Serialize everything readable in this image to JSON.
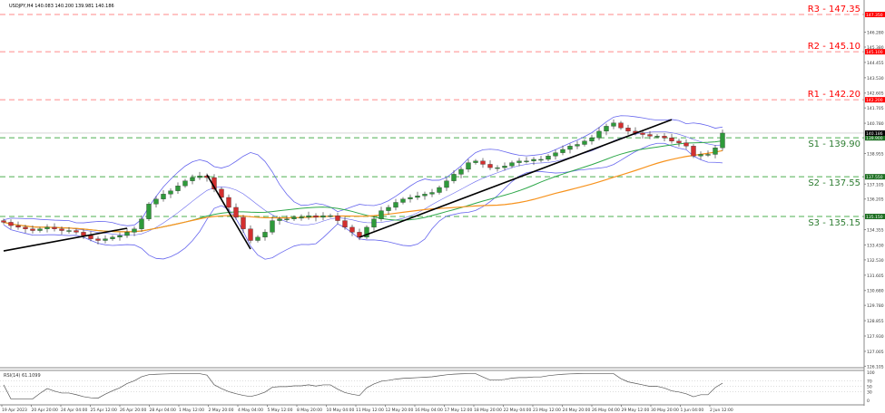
{
  "header": {
    "title": "USDJPY,H4  140.083 140.200 139.981 140.186"
  },
  "chart_data": {
    "type": "candlestick",
    "symbol": "USDJPY",
    "timeframe": "H4",
    "ohlc_last": {
      "open": 140.083,
      "high": 140.2,
      "low": 139.981,
      "close": 140.186
    },
    "ylim": [
      126.105,
      147.6
    ],
    "y_ticks": [
      "146.280",
      "145.380",
      "144.455",
      "143.530",
      "142.605",
      "141.705",
      "140.780",
      "138.955",
      "137.105",
      "136.205",
      "134.355",
      "133.430",
      "132.530",
      "131.605",
      "130.680",
      "129.780",
      "128.855",
      "127.930",
      "127.005",
      "126.105"
    ],
    "x_ticks": [
      "19 Apr 2023",
      "20 Apr 20:00",
      "24 Apr 04:00",
      "25 Apr 12:00",
      "26 Apr 20:00",
      "28 Apr 04:00",
      "1 May 12:00",
      "2 May 20:00",
      "4 May 04:00",
      "5 May 12:00",
      "8 May 20:00",
      "10 May 04:00",
      "11 May 12:00",
      "12 May 20:00",
      "16 May 04:00",
      "17 May 12:00",
      "18 May 20:00",
      "22 May 04:00",
      "23 May 12:00",
      "24 May 20:00",
      "26 May 04:00",
      "29 May 12:00",
      "30 May 20:00",
      "1 Jun 04:00",
      "2 Jun 12:00"
    ],
    "closes": [
      134.8,
      134.6,
      134.5,
      134.4,
      134.3,
      134.4,
      134.5,
      134.4,
      134.3,
      134.3,
      134.2,
      134.0,
      133.8,
      133.7,
      133.8,
      133.9,
      134.0,
      134.2,
      134.4,
      135.0,
      135.9,
      136.2,
      136.5,
      136.7,
      137.0,
      137.3,
      137.5,
      137.6,
      137.5,
      136.8,
      136.3,
      135.7,
      135.1,
      134.4,
      133.7,
      133.9,
      134.2,
      134.9,
      135.0,
      135.0,
      135.1,
      135.1,
      135.2,
      135.1,
      135.2,
      135.2,
      134.9,
      134.5,
      134.2,
      133.9,
      134.5,
      135.0,
      135.5,
      135.7,
      136.0,
      136.2,
      136.3,
      136.4,
      136.5,
      136.6,
      136.9,
      137.3,
      137.7,
      138.0,
      138.4,
      138.5,
      138.3,
      138.1,
      138.1,
      138.2,
      138.4,
      138.5,
      138.5,
      138.6,
      138.6,
      138.8,
      139.0,
      139.2,
      139.4,
      139.5,
      139.7,
      139.9,
      140.3,
      140.6,
      140.8,
      140.5,
      140.3,
      140.2,
      140.1,
      140.0,
      140.0,
      139.9,
      139.7,
      139.6,
      139.4,
      138.8,
      138.9,
      138.9,
      139.3,
      140.186
    ],
    "current_price": "140.186",
    "levels": [
      {
        "name": "R3 - 147.35",
        "value": 147.35,
        "box": "147.350",
        "color": "#ff0000"
      },
      {
        "name": "R2 - 145.10",
        "value": 145.1,
        "box": "145.100",
        "color": "#ff0000"
      },
      {
        "name": "R1 - 142.20",
        "value": 142.2,
        "box": "142.200",
        "color": "#ff0000"
      },
      {
        "name": "S1 - 139.90",
        "value": 139.9,
        "box": "139.900",
        "color": "#2e7d32"
      },
      {
        "name": "S2 - 137.55",
        "value": 137.55,
        "box": "137.550",
        "color": "#2e7d32"
      },
      {
        "name": "S3 - 135.15",
        "value": 135.15,
        "box": "135.150",
        "color": "#2e7d32"
      }
    ],
    "trendlines": [
      {
        "from": [
          0,
          133.07
        ],
        "to": [
          17,
          134.44
        ]
      },
      {
        "from": [
          28,
          137.67
        ],
        "to": [
          34,
          133.18
        ]
      },
      {
        "from": [
          49,
          133.89
        ],
        "to": [
          92,
          141.0
        ]
      }
    ],
    "indicators": {
      "bollinger_color": "#6666ee",
      "ma_fast_color": "#2ea84a",
      "ma_slow_color": "#f7931e",
      "rsi": {
        "label": "RSI(14) 61.1099",
        "ticks": [
          "100",
          "70",
          "50",
          "30",
          "0"
        ]
      }
    },
    "colors": {
      "bull": "#2e9a3a",
      "bear": "#d32f2f"
    }
  }
}
